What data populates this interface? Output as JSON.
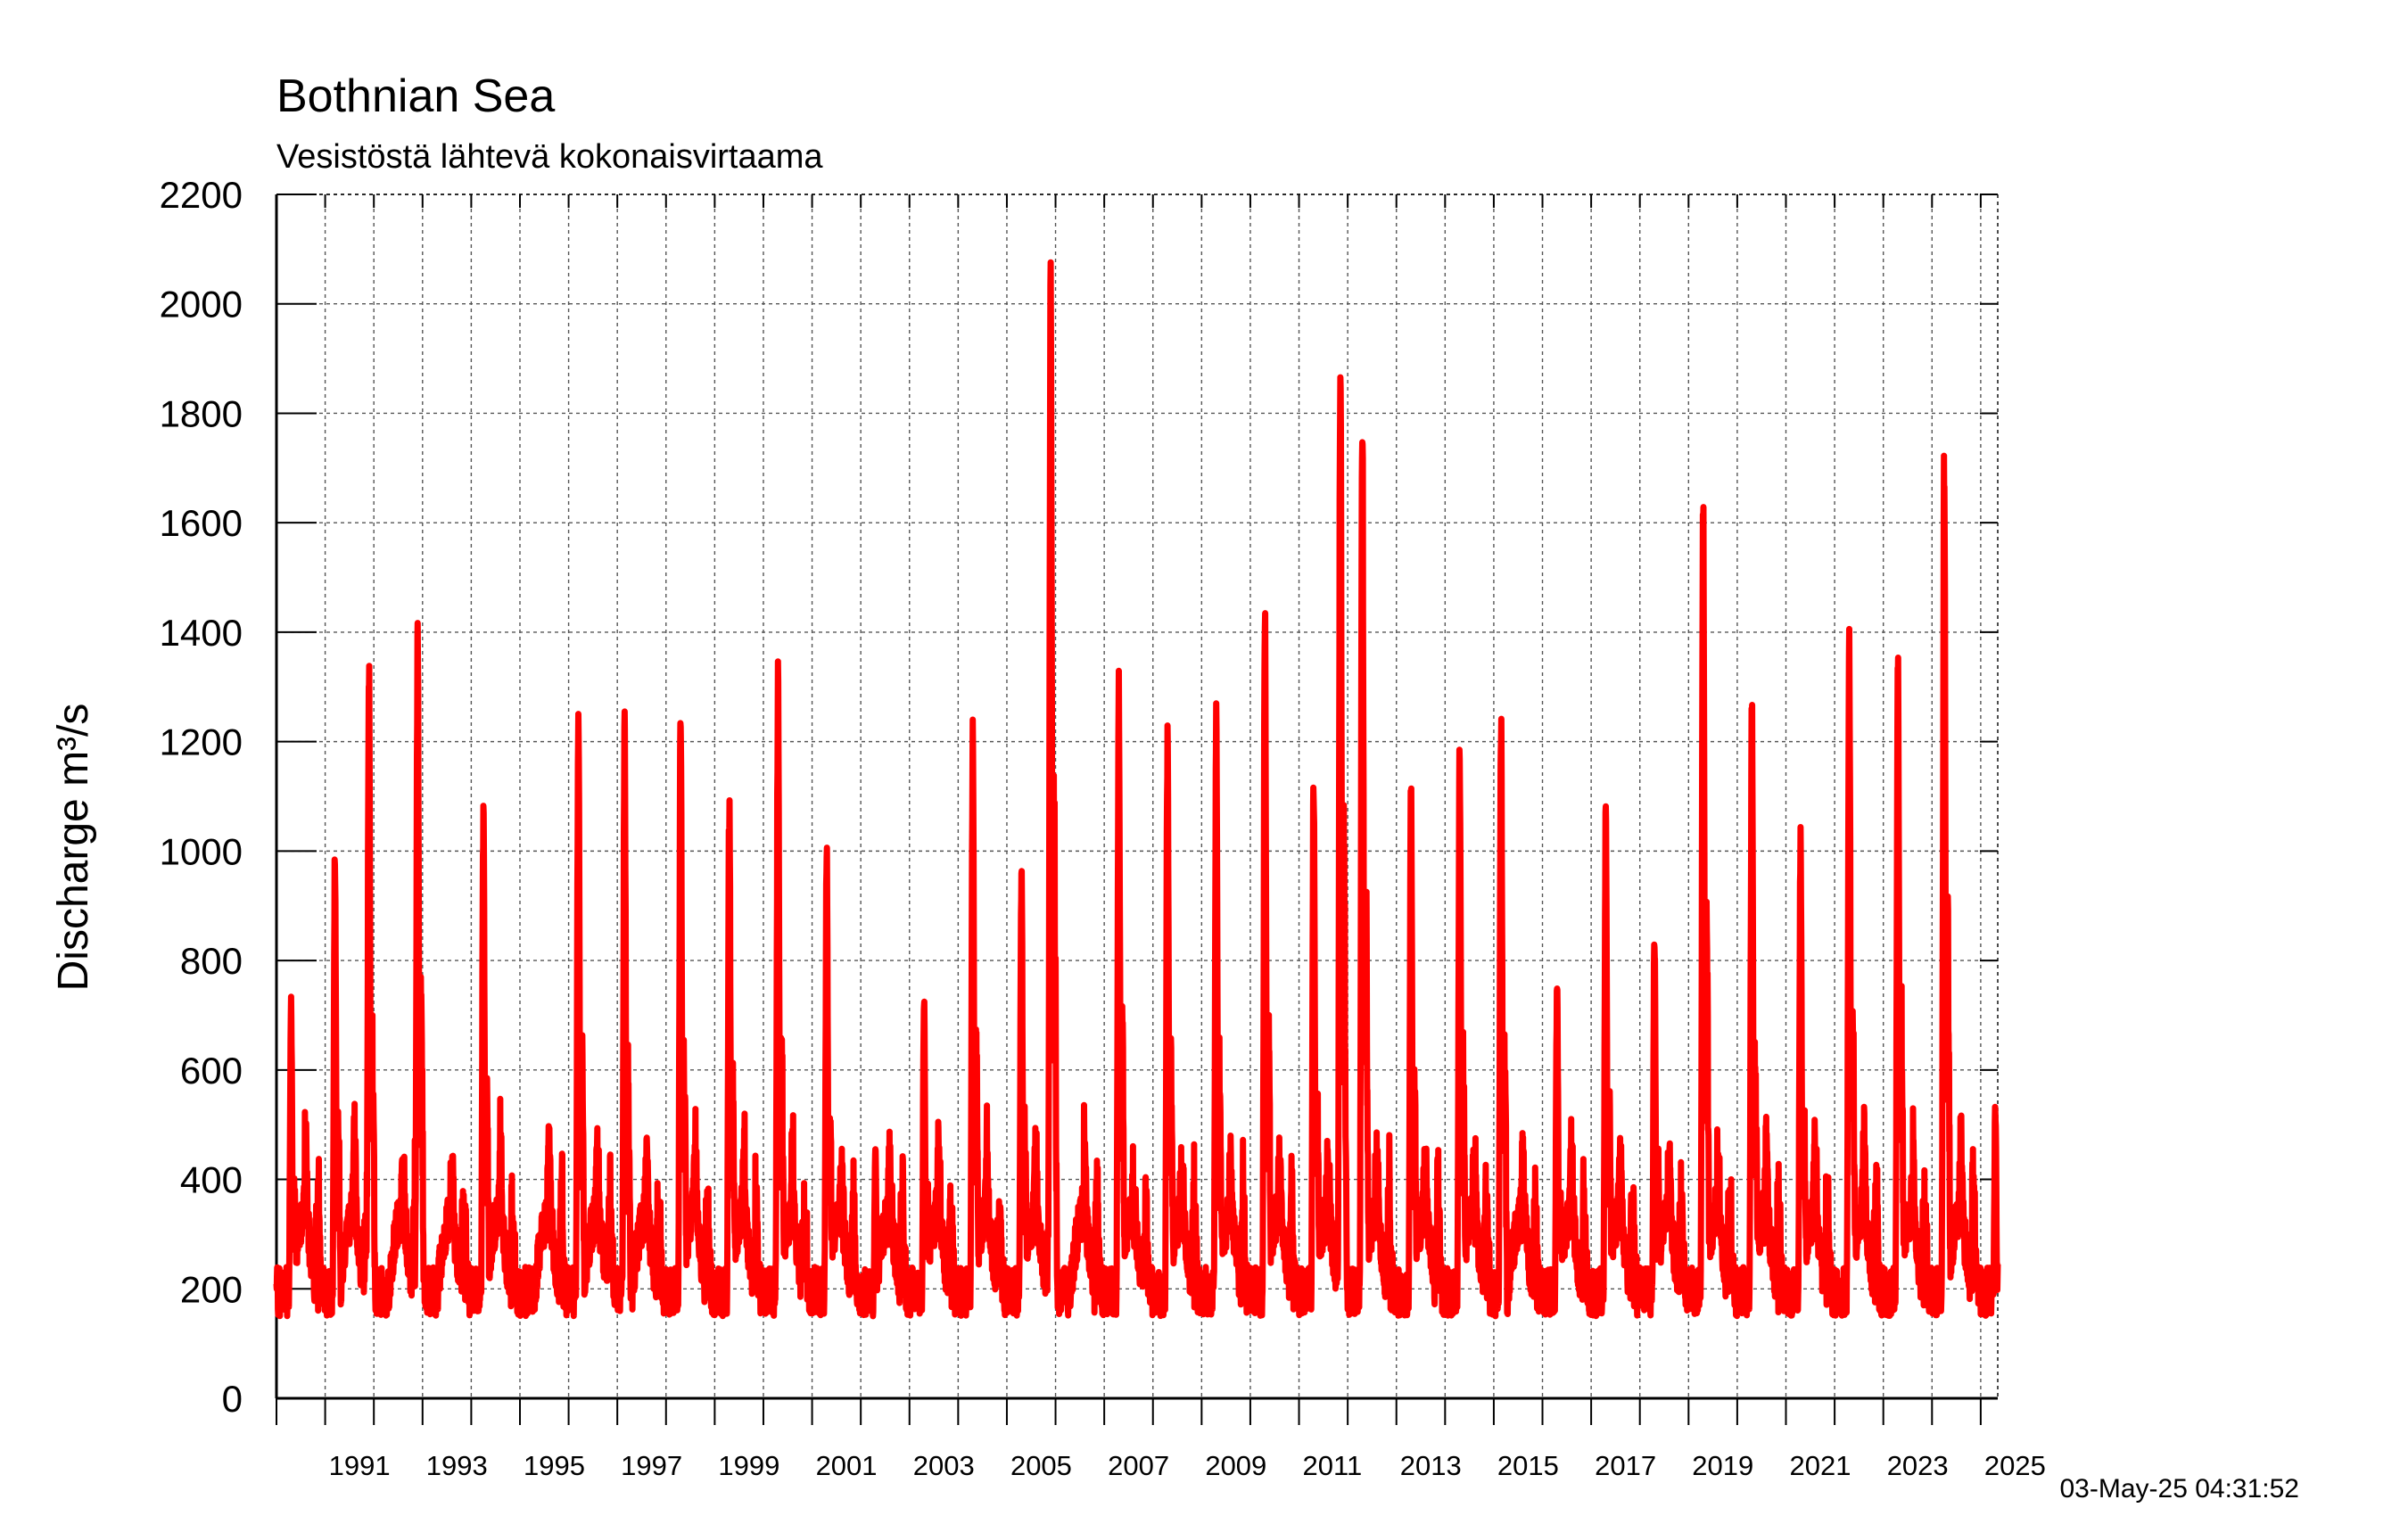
{
  "chart_data": {
    "type": "line",
    "title": "Bothnian Sea",
    "subtitle": "Vesistöstä lähtevä kokonaisvirtaama",
    "ylabel": "Discharge m³/s",
    "xlabel": "",
    "timestamp": "03-May-25 04:31:52",
    "xlim": [
      1990,
      2025.35
    ],
    "ylim": [
      0,
      2200
    ],
    "y_ticks": [
      0,
      200,
      400,
      600,
      800,
      1000,
      1200,
      1400,
      1600,
      1800,
      2000,
      2200
    ],
    "x_ticks": [
      1991,
      1993,
      1995,
      1997,
      1999,
      2001,
      2003,
      2005,
      2007,
      2009,
      2011,
      2013,
      2015,
      2017,
      2019,
      2021,
      2023,
      2025
    ],
    "grid": true,
    "series_color": "#ff0000",
    "annual_peaks": [
      {
        "year": 1990,
        "x": 1990.3,
        "y": 760
      },
      {
        "year": 1991,
        "x": 1991.2,
        "y": 1020
      },
      {
        "year": 1992,
        "x": 1991.9,
        "y": 1380
      },
      {
        "year": 1993,
        "x": 1992.9,
        "y": 1450
      },
      {
        "year": 1994,
        "x": 1994.25,
        "y": 1100
      },
      {
        "year": 1995,
        "x": 1996.2,
        "y": 1310
      },
      {
        "year": 1997,
        "x": 1997.15,
        "y": 1255
      },
      {
        "year": 1998,
        "x": 1998.3,
        "y": 1290
      },
      {
        "year": 1999,
        "x": 1999.3,
        "y": 1130
      },
      {
        "year": 2000,
        "x": 2000.3,
        "y": 1350
      },
      {
        "year": 2001,
        "x": 2001.3,
        "y": 1030
      },
      {
        "year": 2002,
        "x": 2002.3,
        "y": 480
      },
      {
        "year": 2003,
        "x": 2003.3,
        "y": 745
      },
      {
        "year": 2004,
        "x": 2004.3,
        "y": 1250
      },
      {
        "year": 2005,
        "x": 2005.3,
        "y": 1000
      },
      {
        "year": 2006,
        "x": 2005.9,
        "y": 2145
      },
      {
        "year": 2007,
        "x": 2007.3,
        "y": 1330
      },
      {
        "year": 2008,
        "x": 2008.3,
        "y": 1250
      },
      {
        "year": 2009,
        "x": 2009.3,
        "y": 1280
      },
      {
        "year": 2010,
        "x": 2010.3,
        "y": 1480
      },
      {
        "year": 2011,
        "x": 2011.3,
        "y": 1180
      },
      {
        "year": 2012,
        "x": 2011.85,
        "y": 1980
      },
      {
        "year": 2013,
        "x": 2012.3,
        "y": 1875
      },
      {
        "year": 2014,
        "x": 2013.3,
        "y": 1150
      },
      {
        "year": 2015,
        "x": 2014.3,
        "y": 1220
      },
      {
        "year": 2016,
        "x": 2015.15,
        "y": 1300
      },
      {
        "year": 2017,
        "x": 2016.3,
        "y": 790
      },
      {
        "year": 2018,
        "x": 2017.3,
        "y": 1095
      },
      {
        "year": 2019,
        "x": 2018.3,
        "y": 880
      },
      {
        "year": 2020,
        "x": 2019.3,
        "y": 1700
      },
      {
        "year": 2021,
        "x": 2020.3,
        "y": 1300
      },
      {
        "year": 2022,
        "x": 2021.3,
        "y": 1060
      },
      {
        "year": 2023,
        "x": 2022.3,
        "y": 1435
      },
      {
        "year": 2024,
        "x": 2023.3,
        "y": 1390
      },
      {
        "year": 2025,
        "x": 2024.25,
        "y": 1790
      },
      {
        "year": 2025,
        "x": 2025.3,
        "y": 560
      }
    ]
  }
}
